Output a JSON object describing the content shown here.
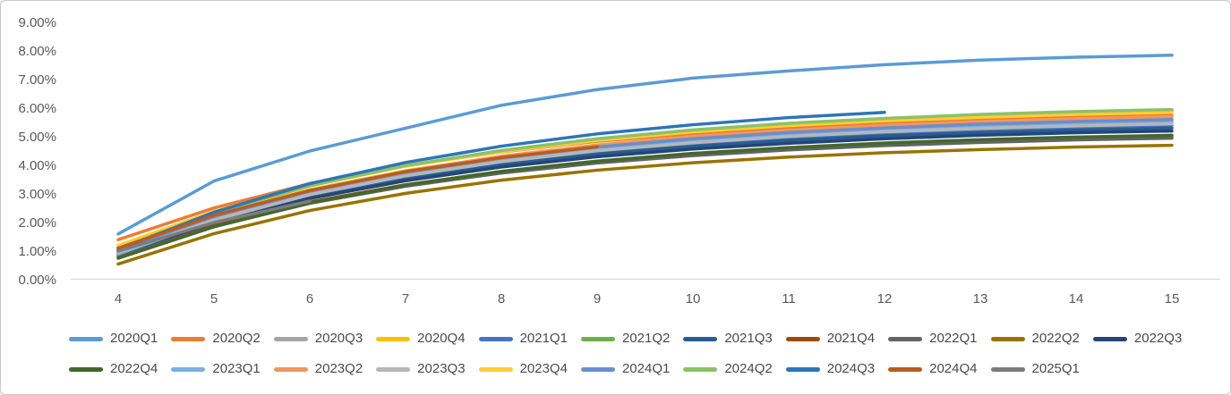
{
  "chart_data": {
    "type": "line",
    "title": "",
    "xlabel": "",
    "ylabel": "",
    "xlim": [
      4,
      15
    ],
    "ylim": [
      0,
      9
    ],
    "grid": "off",
    "legend_position": "bottom",
    "legend_rows": 2,
    "legend_split": 11,
    "x_ticks": [
      4,
      5,
      6,
      7,
      8,
      9,
      10,
      11,
      12,
      13,
      14,
      15
    ],
    "y_tick_labels": [
      "0.00%",
      "1.00%",
      "2.00%",
      "3.00%",
      "4.00%",
      "5.00%",
      "6.00%",
      "7.00%",
      "8.00%",
      "9.00%"
    ],
    "colors": {
      "axis_text": "#595959",
      "axis_line": "#d9d9d9",
      "frame_border": "#c9c9c9",
      "background": "#ffffff"
    },
    "series": [
      {
        "name": "2020Q1",
        "color": "#5B9BD5",
        "x": [
          4,
          5,
          6,
          7,
          8,
          9,
          10,
          11,
          12,
          13,
          14,
          15
        ],
        "values": [
          1.6,
          3.45,
          4.5,
          5.3,
          6.1,
          6.65,
          7.05,
          7.3,
          7.52,
          7.68,
          7.78,
          7.85
        ]
      },
      {
        "name": "2020Q2",
        "color": "#ED7D31",
        "x": [
          4,
          5,
          6,
          7,
          8,
          9,
          10,
          11,
          12,
          13,
          14,
          15
        ],
        "values": [
          1.4,
          2.51,
          3.36,
          3.99,
          4.47,
          4.84,
          5.11,
          5.32,
          5.48,
          5.59,
          5.68,
          5.75
        ]
      },
      {
        "name": "2020Q3",
        "color": "#A5A5A5",
        "x": [
          4,
          5,
          6,
          7,
          8,
          9,
          10,
          11,
          12,
          13,
          14,
          15
        ],
        "values": [
          1.05,
          2.2,
          3.07,
          3.73,
          4.23,
          4.6,
          4.89,
          5.1,
          5.27,
          5.39,
          5.48,
          5.55
        ]
      },
      {
        "name": "2020Q4",
        "color": "#FFC000",
        "x": [
          4,
          5,
          6,
          7,
          8,
          9,
          10,
          11,
          12,
          13,
          14,
          15
        ],
        "values": [
          1.1,
          2.26,
          3.15,
          3.81,
          4.31,
          4.69,
          4.98,
          5.2,
          5.36,
          5.49,
          5.58,
          5.65
        ]
      },
      {
        "name": "2021Q1",
        "color": "#4472C4",
        "x": [
          4,
          5,
          6,
          7,
          8,
          9,
          10,
          11,
          12,
          13,
          14,
          15
        ],
        "values": [
          1.0,
          2.13,
          2.98,
          3.62,
          4.11,
          4.48,
          4.75,
          4.96,
          5.12,
          5.24,
          5.33,
          5.4
        ]
      },
      {
        "name": "2021Q2",
        "color": "#70AD47",
        "x": [
          4,
          5,
          6,
          7,
          8,
          9,
          10,
          11,
          12,
          13,
          14,
          15
        ],
        "values": [
          1.15,
          2.37,
          3.29,
          3.98,
          4.5,
          4.9,
          5.2,
          5.43,
          5.6,
          5.73,
          5.83,
          5.9
        ]
      },
      {
        "name": "2021Q3",
        "color": "#255E91",
        "x": [
          4,
          5,
          6,
          7,
          8,
          9,
          10,
          11,
          12,
          13,
          14,
          15
        ],
        "values": [
          0.95,
          2.06,
          2.91,
          3.54,
          4.02,
          4.39,
          4.66,
          4.87,
          5.03,
          5.14,
          5.23,
          5.3
        ]
      },
      {
        "name": "2021Q4",
        "color": "#9E480E",
        "x": [
          4,
          5,
          6,
          7,
          8,
          9,
          10,
          11,
          12,
          13,
          14,
          15
        ],
        "values": [
          0.85,
          1.91,
          2.72,
          3.32,
          3.78,
          4.13,
          4.39,
          4.59,
          4.74,
          4.85,
          4.94,
          5.0
        ]
      },
      {
        "name": "2022Q1",
        "color": "#636363",
        "x": [
          4,
          5,
          6,
          7,
          8,
          9,
          10,
          11,
          12,
          13,
          14,
          15
        ],
        "values": [
          0.8,
          1.86,
          2.67,
          3.27,
          3.73,
          4.08,
          4.34,
          4.54,
          4.69,
          4.8,
          4.89,
          4.95
        ]
      },
      {
        "name": "2022Q2",
        "color": "#997300",
        "x": [
          4,
          5,
          6,
          7,
          8,
          9,
          10,
          11,
          12,
          13,
          14,
          15
        ],
        "values": [
          0.55,
          1.61,
          2.42,
          3.02,
          3.48,
          3.83,
          4.09,
          4.29,
          4.44,
          4.55,
          4.64,
          4.7
        ]
      },
      {
        "name": "2022Q3",
        "color": "#264478",
        "x": [
          4,
          5,
          6,
          7,
          8,
          9,
          10,
          11,
          12,
          13,
          14,
          15
        ],
        "values": [
          0.9,
          2.0,
          2.84,
          3.46,
          3.94,
          4.3,
          4.57,
          4.77,
          4.93,
          5.05,
          5.14,
          5.2
        ]
      },
      {
        "name": "2022Q4",
        "color": "#43682B",
        "x": [
          4,
          5,
          6,
          7,
          8,
          9,
          10,
          11,
          12,
          13,
          14,
          15
        ],
        "values": [
          0.75,
          1.85,
          2.69,
          3.31,
          3.79,
          4.15,
          4.42,
          4.62,
          4.78,
          4.9,
          4.99,
          5.05
        ]
      },
      {
        "name": "2023Q1",
        "color": "#7CAFDD",
        "x": [
          4,
          5,
          6,
          7,
          8,
          9,
          10,
          11,
          12,
          13,
          14,
          15
        ],
        "values": [
          0.9,
          2.08,
          2.97,
          3.64,
          4.15,
          4.53,
          4.82,
          5.04,
          5.21,
          5.33,
          5.43,
          5.5
        ]
      },
      {
        "name": "2023Q2",
        "color": "#F1975A",
        "x": [
          4,
          5,
          6,
          7,
          8,
          9,
          10,
          11,
          12,
          13,
          14,
          15
        ],
        "values": [
          1.0,
          2.2,
          3.12,
          3.8,
          4.32,
          4.71,
          5.01,
          5.23,
          5.4,
          5.53,
          5.63,
          5.7
        ]
      },
      {
        "name": "2023Q3",
        "color": "#B7B7B7",
        "x": [
          4,
          5,
          6,
          7,
          8,
          9,
          10,
          11,
          12,
          13,
          14,
          15
        ],
        "values": [
          0.95,
          2.1,
          2.98,
          3.63,
          4.13,
          4.51,
          4.79,
          5.01,
          5.17,
          5.29,
          5.38,
          5.45
        ]
      },
      {
        "name": "2023Q4",
        "color": "#FFCD33",
        "x": [
          4,
          5,
          6,
          7,
          8,
          9,
          10,
          11,
          12,
          13,
          14,
          15
        ],
        "values": [
          1.2,
          2.39,
          3.29,
          3.97,
          4.48,
          4.87,
          5.17,
          5.39,
          5.56,
          5.68,
          5.78,
          5.85
        ]
      },
      {
        "name": "2024Q1",
        "color": "#698ED0",
        "x": [
          4,
          5,
          6,
          7,
          8,
          9,
          10,
          11,
          12,
          13,
          14,
          15
        ],
        "values": [
          1.05,
          2.21,
          3.1,
          3.76,
          4.26,
          4.64,
          4.93,
          5.15,
          5.31,
          5.44,
          5.53,
          5.6
        ]
      },
      {
        "name": "2024Q2",
        "color": "#8CC168",
        "x": [
          4,
          5,
          6,
          7,
          8,
          9,
          10,
          11,
          12,
          13,
          14,
          15
        ],
        "values": [
          1.1,
          2.34,
          3.28,
          3.99,
          4.52,
          4.93,
          5.24,
          5.47,
          5.64,
          5.78,
          5.88,
          5.95
        ]
      },
      {
        "name": "2024Q3",
        "color": "#2E75B6",
        "x": [
          4,
          5,
          6,
          7,
          8,
          9,
          10,
          11,
          12
        ],
        "values": [
          1.05,
          2.36,
          3.36,
          4.1,
          4.67,
          5.1,
          5.42,
          5.67,
          5.85
        ]
      },
      {
        "name": "2024Q4",
        "color": "#BC5B20",
        "x": [
          4,
          5,
          6,
          7,
          8,
          9
        ],
        "values": [
          1.1,
          2.25,
          3.12,
          3.78,
          4.27,
          4.65
        ]
      },
      {
        "name": "2025Q1",
        "color": "#7C7C7C",
        "x": [
          4,
          5,
          6
        ],
        "values": [
          1.0,
          2.0,
          2.75
        ]
      }
    ]
  }
}
